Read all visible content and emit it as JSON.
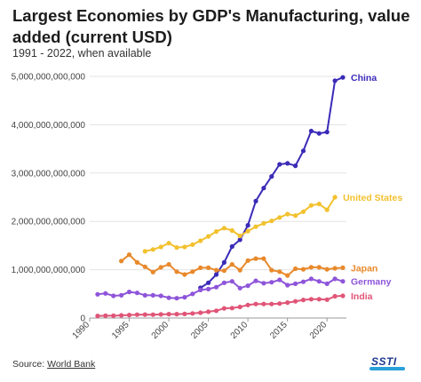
{
  "header": {
    "title": "Largest Economies by GDP's Manufacturing, value added (current USD)",
    "subtitle": "1991 - 2022, when available"
  },
  "footer": {
    "source_prefix": "Source: ",
    "source_link": "World Bank",
    "logo_text": "SSTI"
  },
  "chart_data": {
    "type": "line",
    "title": "Largest Economies by GDP's Manufacturing, value added (current USD)",
    "subtitle": "1991 - 2022, when available",
    "xlabel": "",
    "ylabel": "",
    "xlim": [
      1990,
      2022
    ],
    "ylim": [
      0,
      5000000000000
    ],
    "x_ticks": [
      "1990",
      "1995",
      "2000",
      "2005",
      "2010",
      "2015",
      "2020"
    ],
    "y_ticks": [
      "0",
      "1,000,000,000,000",
      "2,000,000,000,000",
      "3,000,000,000,000",
      "4,000,000,000,000",
      "5,000,000,000,000"
    ],
    "grid": "horizontal",
    "legend": "direct labels at line ends",
    "series": [
      {
        "name": "China",
        "color": "#3a2bb8",
        "x": [
          2004,
          2005,
          2006,
          2007,
          2008,
          2009,
          2010,
          2011,
          2012,
          2013,
          2014,
          2015,
          2016,
          2017,
          2018,
          2019,
          2020,
          2021,
          2022
        ],
        "y": [
          625000000000,
          730000000000,
          900000000000,
          1150000000000,
          1480000000000,
          1620000000000,
          1920000000000,
          2420000000000,
          2690000000000,
          2930000000000,
          3180000000000,
          3200000000000,
          3150000000000,
          3460000000000,
          3870000000000,
          3820000000000,
          3850000000000,
          4910000000000,
          4980000000000
        ]
      },
      {
        "name": "United States",
        "color": "#f2c12e",
        "x": [
          1997,
          1998,
          1999,
          2000,
          2001,
          2002,
          2003,
          2004,
          2005,
          2006,
          2007,
          2008,
          2009,
          2010,
          2011,
          2012,
          2013,
          2014,
          2015,
          2016,
          2017,
          2018,
          2019,
          2020,
          2021
        ],
        "y": [
          1380000000000,
          1420000000000,
          1470000000000,
          1550000000000,
          1460000000000,
          1470000000000,
          1520000000000,
          1600000000000,
          1690000000000,
          1790000000000,
          1860000000000,
          1810000000000,
          1700000000000,
          1800000000000,
          1890000000000,
          1960000000000,
          2010000000000,
          2080000000000,
          2150000000000,
          2120000000000,
          2200000000000,
          2330000000000,
          2360000000000,
          2240000000000,
          2500000000000
        ]
      },
      {
        "name": "Japan",
        "color": "#e8892b",
        "x": [
          1994,
          1995,
          1996,
          1997,
          1998,
          1999,
          2000,
          2001,
          2002,
          2003,
          2004,
          2005,
          2006,
          2007,
          2008,
          2009,
          2010,
          2011,
          2012,
          2013,
          2014,
          2015,
          2016,
          2017,
          2018,
          2019,
          2020,
          2021,
          2022
        ],
        "y": [
          1180000000000,
          1310000000000,
          1150000000000,
          1060000000000,
          950000000000,
          1050000000000,
          1110000000000,
          960000000000,
          900000000000,
          960000000000,
          1040000000000,
          1040000000000,
          990000000000,
          980000000000,
          1110000000000,
          990000000000,
          1190000000000,
          1230000000000,
          1230000000000,
          990000000000,
          960000000000,
          880000000000,
          1020000000000,
          1010000000000,
          1050000000000,
          1050000000000,
          1010000000000,
          1030000000000,
          1040000000000
        ]
      },
      {
        "name": "Germany",
        "color": "#8e55d9",
        "x": [
          1991,
          1992,
          1993,
          1994,
          1995,
          1996,
          1997,
          1998,
          1999,
          2000,
          2001,
          2002,
          2003,
          2004,
          2005,
          2006,
          2007,
          2008,
          2009,
          2010,
          2011,
          2012,
          2013,
          2014,
          2015,
          2016,
          2017,
          2018,
          2019,
          2020,
          2021,
          2022
        ],
        "y": [
          490000000000,
          510000000000,
          460000000000,
          470000000000,
          540000000000,
          520000000000,
          470000000000,
          470000000000,
          460000000000,
          420000000000,
          410000000000,
          430000000000,
          500000000000,
          580000000000,
          600000000000,
          640000000000,
          730000000000,
          760000000000,
          620000000000,
          670000000000,
          770000000000,
          720000000000,
          740000000000,
          790000000000,
          680000000000,
          710000000000,
          750000000000,
          810000000000,
          760000000000,
          710000000000,
          810000000000,
          760000000000
        ]
      },
      {
        "name": "India",
        "color": "#e05577",
        "x": [
          1991,
          1992,
          1993,
          1994,
          1995,
          1996,
          1997,
          1998,
          1999,
          2000,
          2001,
          2002,
          2003,
          2004,
          2005,
          2006,
          2007,
          2008,
          2009,
          2010,
          2011,
          2012,
          2013,
          2014,
          2015,
          2016,
          2017,
          2018,
          2019,
          2020,
          2021,
          2022
        ],
        "y": [
          45000000000,
          48000000000,
          48000000000,
          55000000000,
          63000000000,
          70000000000,
          72000000000,
          70000000000,
          75000000000,
          80000000000,
          80000000000,
          85000000000,
          95000000000,
          110000000000,
          130000000000,
          150000000000,
          200000000000,
          205000000000,
          230000000000,
          270000000000,
          290000000000,
          290000000000,
          290000000000,
          300000000000,
          320000000000,
          345000000000,
          375000000000,
          390000000000,
          390000000000,
          380000000000,
          450000000000,
          460000000000
        ]
      }
    ]
  }
}
